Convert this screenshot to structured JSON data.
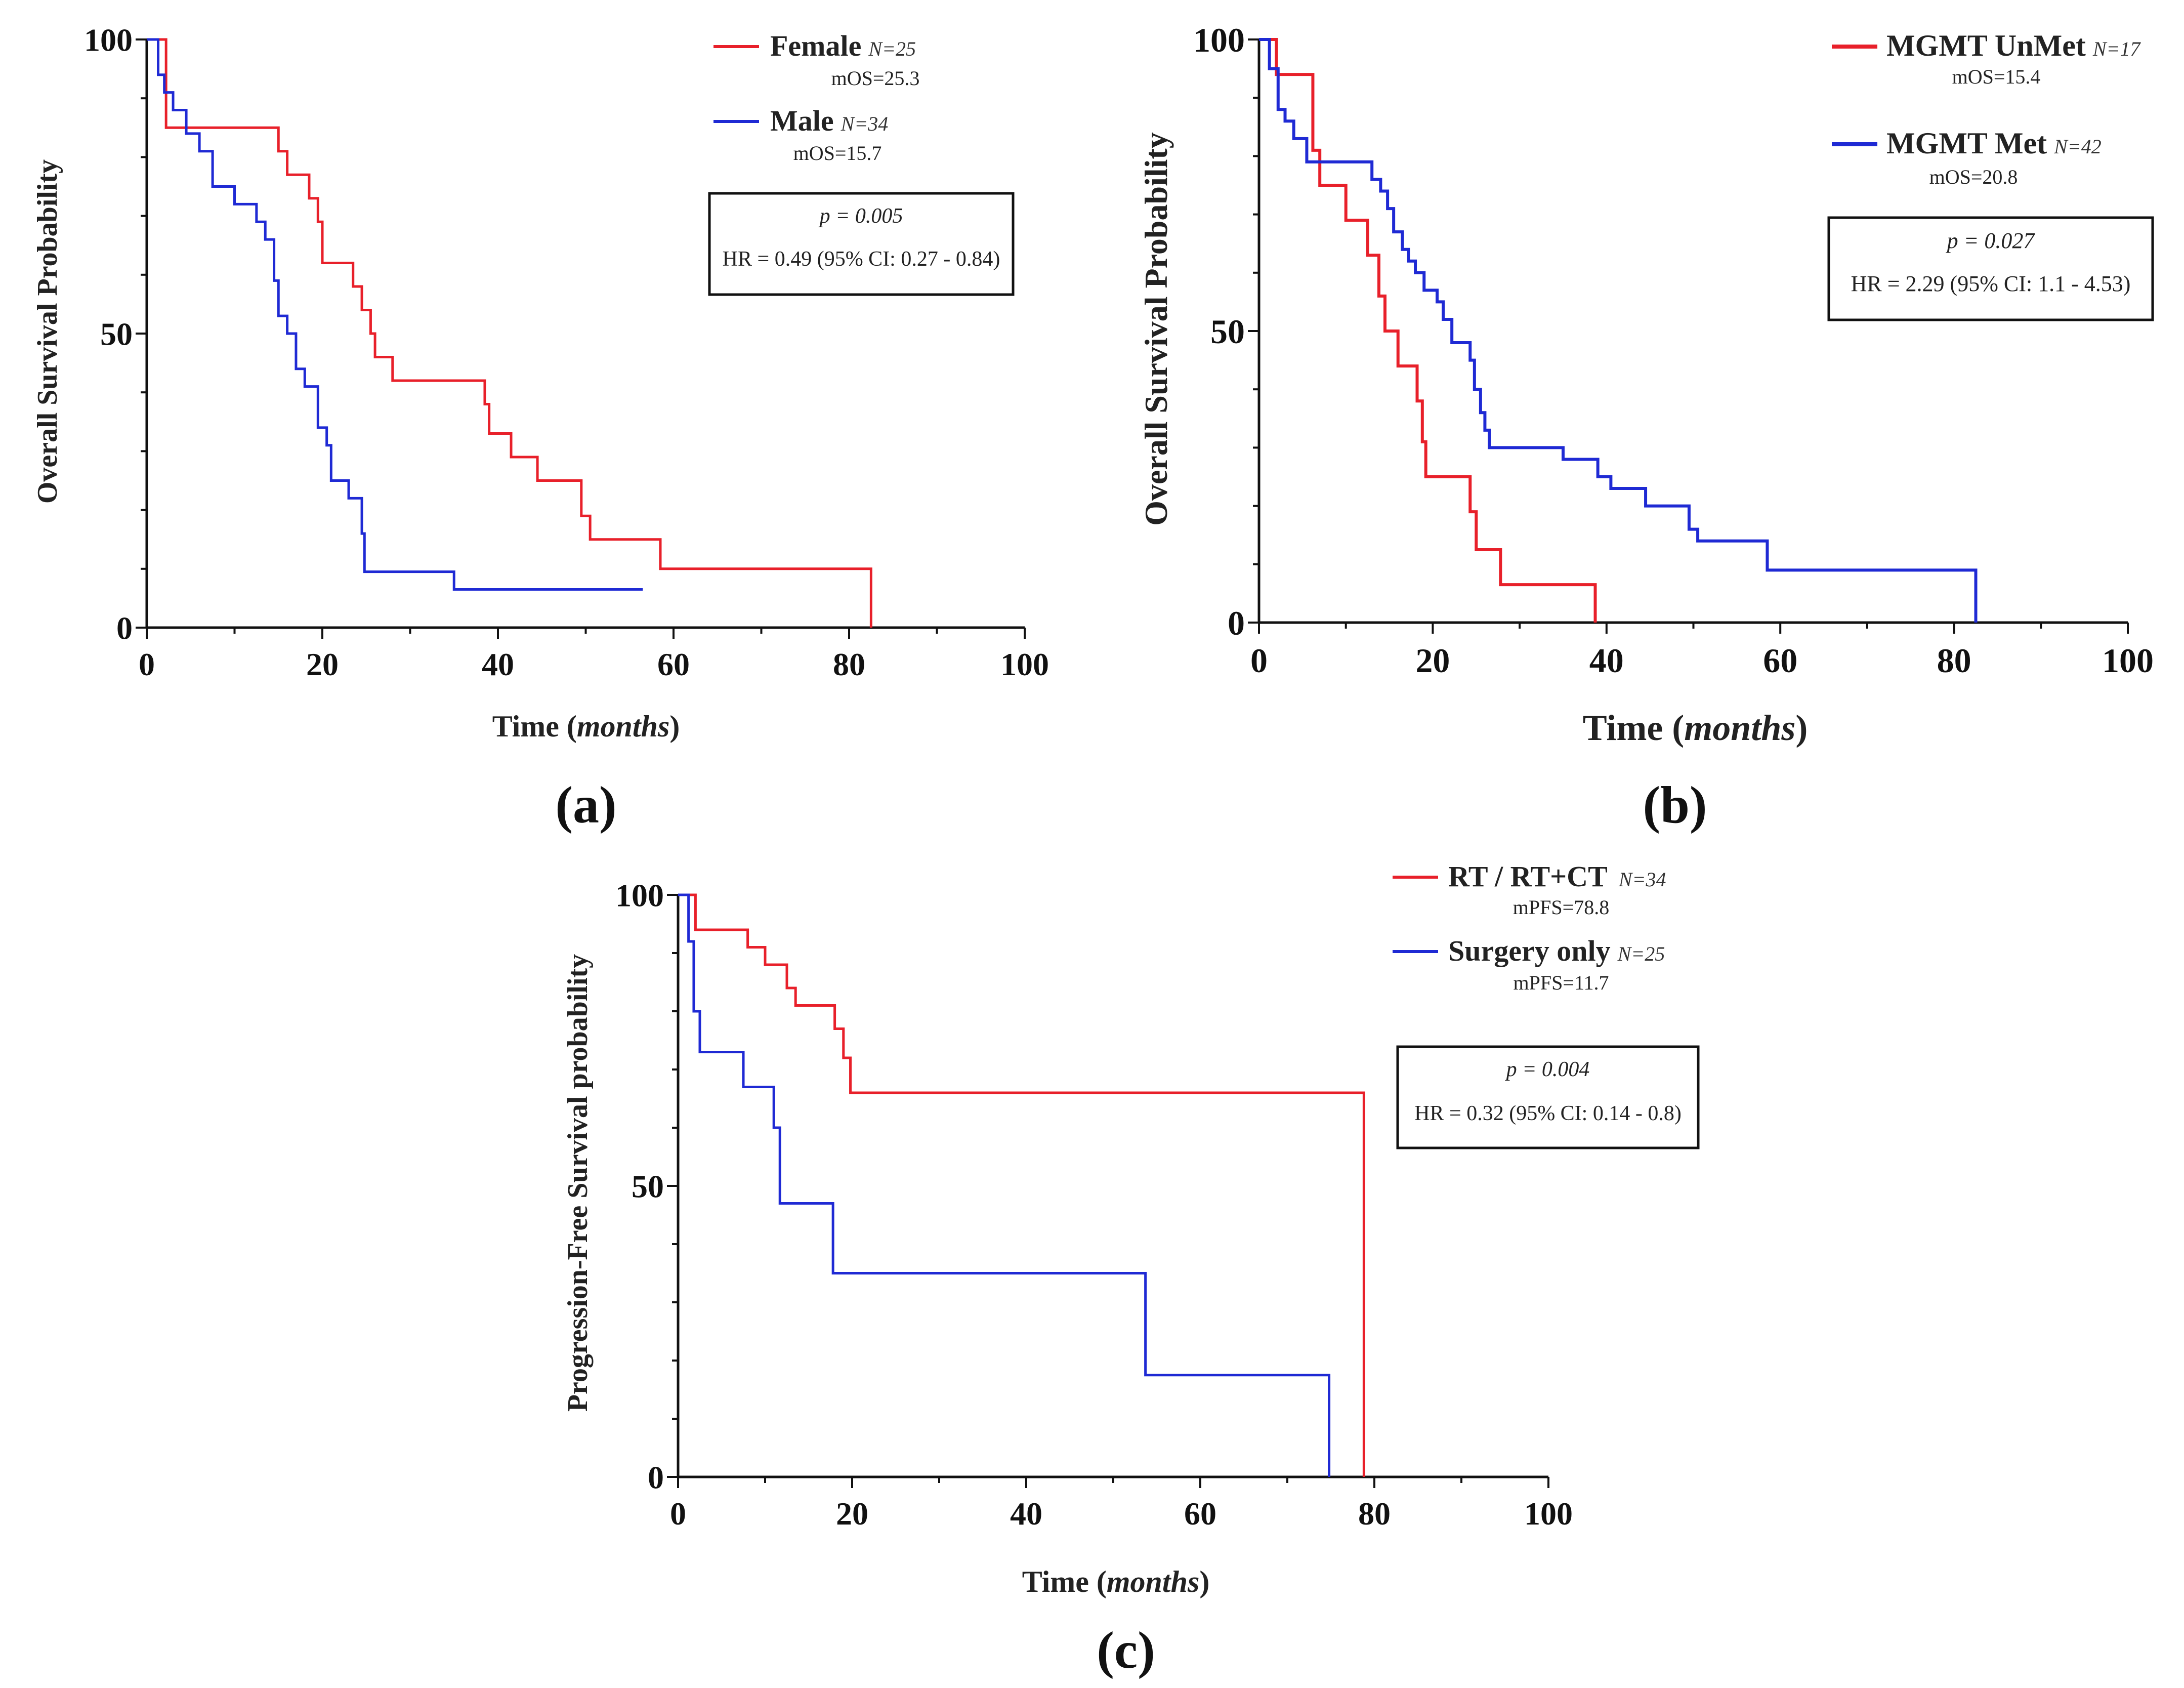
{
  "chart_data": [
    {
      "type": "line",
      "subtype": "kaplan-meier",
      "panel_label": "(a)",
      "ylabel": "Overall Survival Probability",
      "xlabel_prefix": "Time (",
      "xlabel_italic": "months",
      "xlabel_suffix": ")",
      "xlim": [
        0,
        100
      ],
      "ylim": [
        0,
        100
      ],
      "xticks": [
        0,
        20,
        40,
        60,
        80,
        100
      ],
      "yticks": [
        0,
        50,
        100
      ],
      "p_text": "p = 0.005",
      "hr_text": "HR = 0.49 (95% CI: 0.27 - 0.84)",
      "series": [
        {
          "name": "Female",
          "n_label": "N=25",
          "median_label": "mOS=25.3",
          "color": "#e8202a",
          "x": [
            0,
            2.2,
            15,
            16,
            18.5,
            19.5,
            20,
            23.5,
            24.5,
            25.5,
            26,
            28,
            38.5,
            39,
            41.5,
            44.5,
            49.5,
            50.5,
            58.5,
            82.5,
            82.5
          ],
          "y": [
            100,
            85,
            81,
            77,
            73,
            69,
            62,
            58,
            54,
            50,
            46,
            42,
            38,
            33,
            29,
            25,
            19,
            15,
            10,
            10,
            0
          ]
        },
        {
          "name": "Male",
          "n_label": "N=34",
          "median_label": "mOS=15.7",
          "color": "#1f2ad4",
          "x": [
            0,
            1.3,
            2.0,
            3.0,
            4.5,
            6.0,
            7.5,
            10,
            12.5,
            13.5,
            14.5,
            15,
            16,
            17,
            18,
            19.5,
            20.5,
            21,
            23,
            24.5,
            24.8,
            35,
            56.5
          ],
          "y": [
            100,
            94,
            91,
            88,
            84,
            81,
            75,
            72,
            69,
            66,
            59,
            53,
            50,
            44,
            41,
            34,
            31,
            25,
            22,
            16,
            9.5,
            6.5,
            6.5
          ]
        }
      ]
    },
    {
      "type": "line",
      "subtype": "kaplan-meier",
      "panel_label": "(b)",
      "ylabel": "Overall Survival Probability",
      "xlabel_prefix": "Time (",
      "xlabel_italic": "months",
      "xlabel_suffix": ")",
      "xlim": [
        0,
        100
      ],
      "ylim": [
        0,
        100
      ],
      "xticks": [
        0,
        20,
        40,
        60,
        80,
        100
      ],
      "yticks": [
        0,
        50,
        100
      ],
      "p_text": "p = 0.027",
      "hr_text": "HR = 2.29 (95% CI: 1.1 - 4.53)",
      "series": [
        {
          "name": "MGMT UnMet",
          "n_label": "N=17",
          "median_label": "mOS=15.4",
          "color": "#e8202a",
          "x": [
            0,
            2,
            6.2,
            7,
            10,
            12.5,
            13.8,
            14.5,
            16,
            18.2,
            18.8,
            19.2,
            24.3,
            25,
            27.8,
            38.7,
            38.7
          ],
          "y": [
            100,
            94,
            81,
            75,
            69,
            63,
            56,
            50,
            44,
            38,
            31,
            25,
            19,
            12.5,
            6.5,
            6.5,
            0
          ]
        },
        {
          "name": "MGMT Met",
          "n_label": "N=42",
          "median_label": "mOS=20.8",
          "color": "#1f2ad4",
          "x": [
            0,
            1.2,
            2.2,
            3.0,
            4.0,
            5.5,
            13,
            14,
            14.8,
            15.5,
            16.5,
            17.2,
            18.0,
            19.0,
            20.5,
            21.2,
            22.2,
            24.3,
            24.8,
            25.5,
            26.0,
            26.5,
            35,
            39,
            40.5,
            44.5,
            49.5,
            50.5,
            58.5,
            82.5
          ],
          "y": [
            100,
            95,
            88,
            86,
            83,
            79,
            76,
            74,
            71,
            67,
            64,
            62,
            60,
            57,
            55,
            52,
            48,
            45,
            40,
            36,
            33,
            30,
            28,
            25,
            23,
            20,
            16,
            14,
            9,
            0
          ]
        }
      ]
    },
    {
      "type": "line",
      "subtype": "kaplan-meier",
      "panel_label": "(c)",
      "ylabel": "Progression-Free Survival probability",
      "xlabel_prefix": "Time (",
      "xlabel_italic": "months",
      "xlabel_suffix": ")",
      "xlim": [
        0,
        100
      ],
      "ylim": [
        0,
        100
      ],
      "xticks": [
        0,
        20,
        40,
        60,
        80,
        100
      ],
      "yticks": [
        0,
        50,
        100
      ],
      "p_text": "p = 0.004",
      "hr_text": "HR = 0.32 (95% CI: 0.14 - 0.8)",
      "series": [
        {
          "name": "RT / RT+CT",
          "n_label": "N=34",
          "median_label": "mPFS=78.8",
          "color": "#e8202a",
          "x": [
            0,
            2,
            8,
            10,
            12.5,
            13.5,
            18,
            19,
            19.8,
            78.8,
            78.8
          ],
          "y": [
            100,
            94,
            91,
            88,
            84,
            81,
            77,
            72,
            66,
            66,
            0
          ]
        },
        {
          "name": "Surgery only",
          "n_label": "N=25",
          "median_label": "mPFS=11.7",
          "color": "#1f2ad4",
          "x": [
            0,
            1.2,
            1.8,
            2.5,
            7.5,
            11,
            11.7,
            17.8,
            53.7,
            74.8
          ],
          "y": [
            100,
            92,
            80,
            73,
            67,
            60,
            47,
            35,
            17.5,
            0
          ]
        }
      ]
    }
  ]
}
